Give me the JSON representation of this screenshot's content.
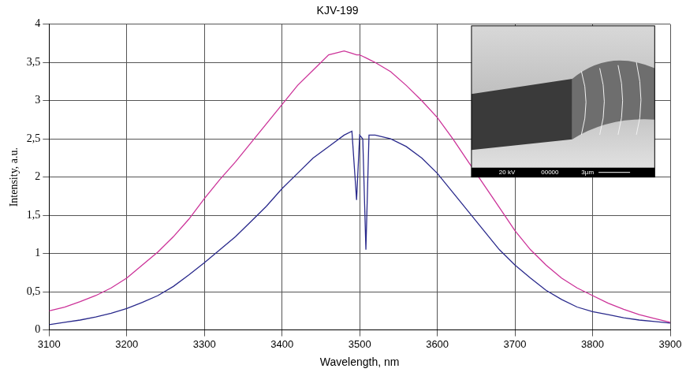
{
  "chart_data": {
    "type": "line",
    "title": "KJV-199",
    "x_label": "Wavelength, nm",
    "y_label": "Intensity, a.u.",
    "x": [
      3100,
      3120,
      3140,
      3160,
      3180,
      3200,
      3220,
      3240,
      3260,
      3280,
      3300,
      3320,
      3340,
      3360,
      3380,
      3400,
      3420,
      3440,
      3460,
      3480,
      3490,
      3496,
      3500,
      3504,
      3508,
      3512,
      3520,
      3540,
      3560,
      3580,
      3600,
      3620,
      3640,
      3660,
      3680,
      3700,
      3720,
      3740,
      3760,
      3780,
      3800,
      3820,
      3840,
      3860,
      3880,
      3900
    ],
    "series": [
      {
        "color": "#cc3399",
        "values": [
          0.25,
          0.3,
          0.37,
          0.45,
          0.55,
          0.68,
          0.85,
          1.02,
          1.22,
          1.45,
          1.72,
          1.97,
          2.2,
          2.45,
          2.7,
          2.95,
          3.2,
          3.4,
          3.6,
          3.65,
          3.62,
          3.6,
          3.6,
          3.58,
          3.56,
          3.54,
          3.5,
          3.38,
          3.2,
          3.0,
          2.78,
          2.5,
          2.2,
          1.9,
          1.6,
          1.3,
          1.05,
          0.85,
          0.68,
          0.55,
          0.45,
          0.35,
          0.27,
          0.2,
          0.15,
          0.1
        ]
      },
      {
        "color": "#2a2a8c",
        "values": [
          0.07,
          0.1,
          0.13,
          0.17,
          0.22,
          0.28,
          0.36,
          0.45,
          0.57,
          0.72,
          0.88,
          1.05,
          1.22,
          1.42,
          1.62,
          1.85,
          2.05,
          2.25,
          2.4,
          2.55,
          2.6,
          1.7,
          2.55,
          2.5,
          1.05,
          2.55,
          2.55,
          2.5,
          2.4,
          2.25,
          2.05,
          1.8,
          1.55,
          1.3,
          1.05,
          0.85,
          0.68,
          0.52,
          0.4,
          0.3,
          0.24,
          0.2,
          0.16,
          0.13,
          0.11,
          0.09
        ]
      }
    ],
    "xlim": [
      3100,
      3900
    ],
    "xticks": [
      3100,
      3200,
      3300,
      3400,
      3500,
      3600,
      3700,
      3800,
      3900
    ],
    "ylim": [
      0,
      4
    ],
    "yticks": [
      0,
      {
        "value": 0.5,
        "label": "0,5"
      },
      1,
      {
        "value": 1.5,
        "label": "1,5"
      },
      2,
      {
        "value": 2.5,
        "label": "2,5"
      },
      3,
      {
        "value": 3.5,
        "label": "3,5"
      },
      4
    ],
    "grid": true,
    "annotations": [
      "20 kV",
      "00000",
      "3µm"
    ]
  }
}
